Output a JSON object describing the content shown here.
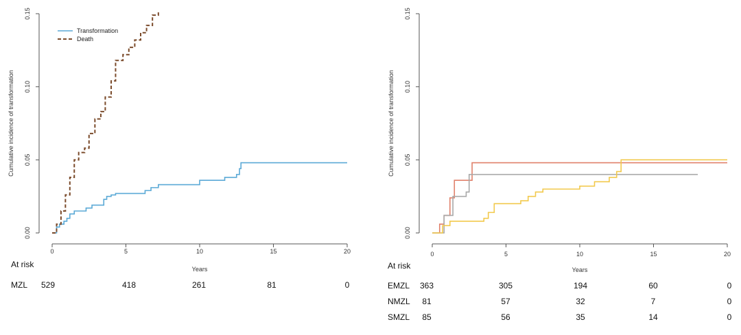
{
  "chart_data": [
    {
      "type": "line",
      "title": "",
      "xlabel": "Years",
      "ylabel": "Cumulative incidence of transformation",
      "xlim": [
        0,
        20
      ],
      "ylim": [
        0,
        0.15
      ],
      "x_ticks": [
        0,
        5,
        10,
        15,
        20
      ],
      "y_ticks": [
        0.0,
        0.05,
        0.1,
        0.15
      ],
      "y_tick_labels": [
        "0.00",
        "0.05",
        "0.10",
        "0.15"
      ],
      "grid": false,
      "legend_position": "top-left",
      "series": [
        {
          "name": "Transformation",
          "color": "#5aa9d6",
          "dash": "solid",
          "x": [
            0,
            0.3,
            0.5,
            0.8,
            1.0,
            1.2,
            1.5,
            2.3,
            2.7,
            3.5,
            3.7,
            4.0,
            4.3,
            6.3,
            6.7,
            7.2,
            10.0,
            11.7,
            12.5,
            12.7,
            12.8,
            20.0
          ],
          "y": [
            0,
            0.004,
            0.006,
            0.008,
            0.01,
            0.013,
            0.015,
            0.017,
            0.019,
            0.023,
            0.025,
            0.026,
            0.027,
            0.029,
            0.031,
            0.033,
            0.036,
            0.038,
            0.04,
            0.044,
            0.048,
            0.048
          ]
        },
        {
          "name": "Death",
          "color": "#7a4a2a",
          "dash": "dashed",
          "x": [
            0,
            0.3,
            0.6,
            0.9,
            1.2,
            1.5,
            1.8,
            2.2,
            2.5,
            2.9,
            3.3,
            3.6,
            4.0,
            4.3,
            4.8,
            5.2,
            5.6,
            6.0,
            6.4,
            6.8,
            7.2
          ],
          "y": [
            0,
            0.006,
            0.015,
            0.026,
            0.038,
            0.05,
            0.055,
            0.058,
            0.068,
            0.078,
            0.083,
            0.093,
            0.104,
            0.118,
            0.122,
            0.127,
            0.132,
            0.137,
            0.142,
            0.149,
            0.155
          ]
        }
      ],
      "at_risk": {
        "header": "At risk",
        "x": [
          0,
          5,
          10,
          15,
          20
        ],
        "rows": [
          {
            "label": "MZL",
            "values": [
              "529",
              "418",
              "261",
              "81",
              "0"
            ]
          }
        ]
      }
    },
    {
      "type": "line",
      "title": "",
      "xlabel": "Years",
      "ylabel": "Cumulative incidence of transformation",
      "xlim": [
        0,
        20
      ],
      "ylim": [
        0,
        0.15
      ],
      "x_ticks": [
        0,
        5,
        10,
        15,
        20
      ],
      "y_ticks": [
        0.0,
        0.05,
        0.1,
        0.15
      ],
      "y_tick_labels": [
        "0.00",
        "0.05",
        "0.10",
        "0.15"
      ],
      "grid": false,
      "legend_position": "",
      "series": [
        {
          "color": "#e0806a",
          "dash": "solid",
          "x": [
            0,
            0.5,
            0.8,
            1.2,
            1.5,
            2.5,
            2.7,
            20.0
          ],
          "y": [
            0,
            0.006,
            0.012,
            0.024,
            0.036,
            0.036,
            0.048,
            0.048
          ]
        },
        {
          "color": "#a8a8a8",
          "dash": "solid",
          "x": [
            0,
            0.8,
            1.4,
            1.8,
            2.3,
            2.5,
            18.0
          ],
          "y": [
            0,
            0.012,
            0.025,
            0.025,
            0.028,
            0.04,
            0.04
          ]
        },
        {
          "color": "#f2c94c",
          "dash": "solid",
          "x": [
            0,
            0.7,
            1.2,
            3.5,
            3.8,
            4.2,
            6.0,
            6.5,
            7.0,
            7.5,
            10.0,
            11.0,
            12.0,
            12.5,
            12.8,
            20.0
          ],
          "y": [
            0,
            0.005,
            0.008,
            0.01,
            0.014,
            0.02,
            0.022,
            0.025,
            0.028,
            0.03,
            0.032,
            0.035,
            0.038,
            0.042,
            0.05,
            0.05
          ]
        }
      ],
      "at_risk": {
        "header": "At risk",
        "x": [
          0,
          5,
          10,
          15,
          20
        ],
        "rows": [
          {
            "label": "EMZL",
            "values": [
              "363",
              "305",
              "194",
              "60",
              "0"
            ]
          },
          {
            "label": "NMZL",
            "values": [
              "81",
              "57",
              "32",
              "7",
              "0"
            ]
          },
          {
            "label": "SMZL",
            "values": [
              "85",
              "56",
              "35",
              "14",
              "0"
            ]
          }
        ]
      }
    }
  ]
}
